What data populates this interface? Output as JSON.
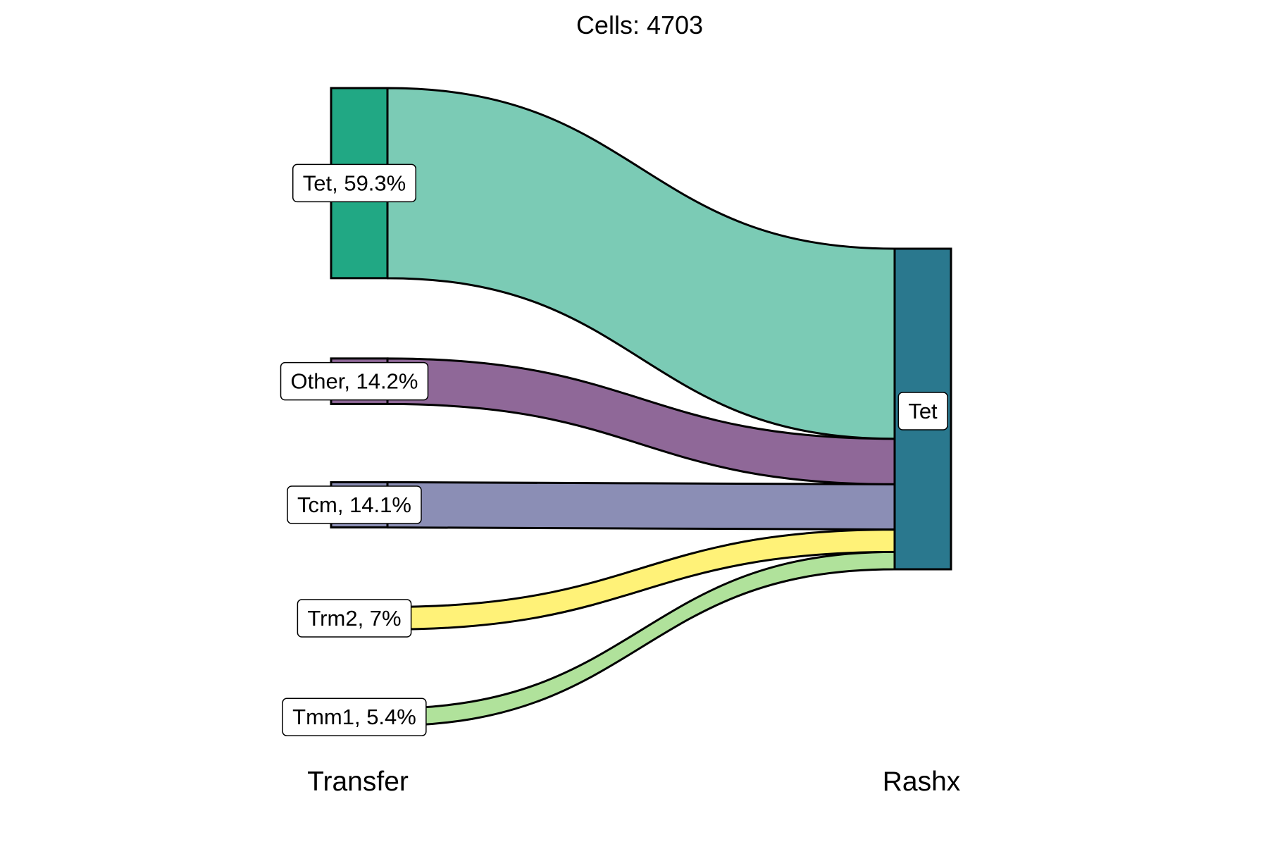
{
  "chart_data": {
    "type": "sankey",
    "title": "Cells:  4703",
    "total_cells": 4703,
    "axes": [
      "Transfer",
      "Rashx"
    ],
    "left_nodes": [
      {
        "name": "Tet",
        "percent": 59.3,
        "label": "Tet, 59.3%",
        "color": "#21A884",
        "flow_color": "#7BCBB5"
      },
      {
        "name": "Other",
        "percent": 14.2,
        "label": "Other, 14.2%",
        "color": "#8F6898",
        "flow_color": "#8F6898"
      },
      {
        "name": "Tcm",
        "percent": 14.1,
        "label": "Tcm, 14.1%",
        "color": "#8B8EB5",
        "flow_color": "#8B8EB5"
      },
      {
        "name": "Trm2",
        "percent": 7.0,
        "label": "Trm2, 7%",
        "color": "#FFF278",
        "flow_color": "#FFF278"
      },
      {
        "name": "Tmm1",
        "percent": 5.4,
        "label": "Tmm1, 5.4%",
        "color": "#B0E29B",
        "flow_color": "#B0E29B"
      }
    ],
    "right_nodes": [
      {
        "name": "Tet",
        "percent": 100.0,
        "label": "Tet",
        "color": "#2A788E"
      }
    ],
    "flows": [
      {
        "from": "Tet",
        "to": "Tet",
        "percent": 59.3
      },
      {
        "from": "Other",
        "to": "Tet",
        "percent": 14.2
      },
      {
        "from": "Tcm",
        "to": "Tet",
        "percent": 14.1
      },
      {
        "from": "Trm2",
        "to": "Tet",
        "percent": 7.0
      },
      {
        "from": "Tmm1",
        "to": "Tet",
        "percent": 5.4
      }
    ]
  }
}
